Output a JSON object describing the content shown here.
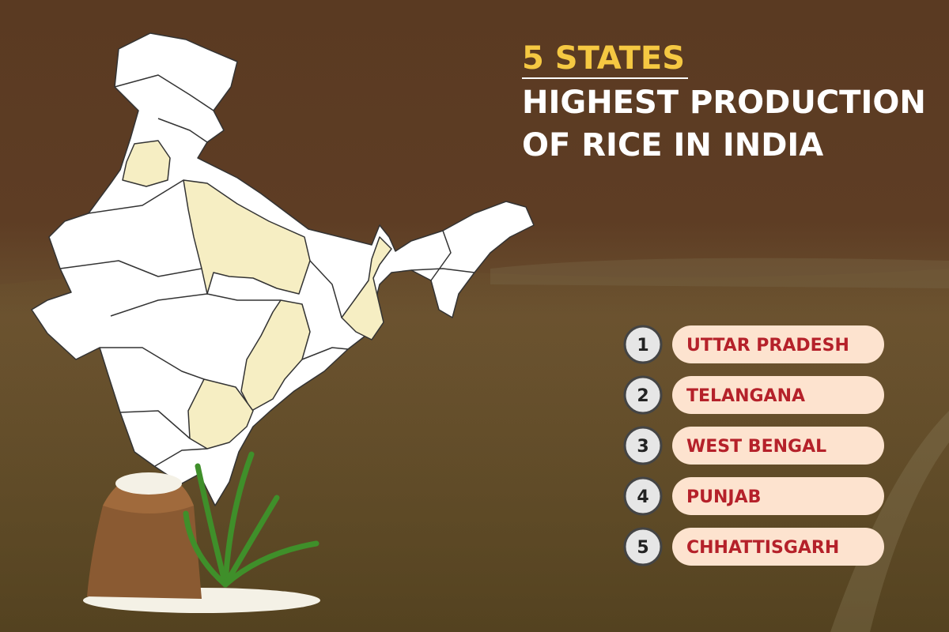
{
  "header": {
    "highlight": "5 STATES",
    "title_lines": [
      "HIGHEST PRODUCTION",
      "OF RICE IN INDIA"
    ]
  },
  "ranking": [
    {
      "rank": "1",
      "state": "UTTAR PRADESH"
    },
    {
      "rank": "2",
      "state": "TELANGANA"
    },
    {
      "rank": "3",
      "state": "WEST BENGAL"
    },
    {
      "rank": "4",
      "state": "PUNJAB"
    },
    {
      "rank": "5",
      "state": "CHHATTISGARH"
    }
  ]
}
